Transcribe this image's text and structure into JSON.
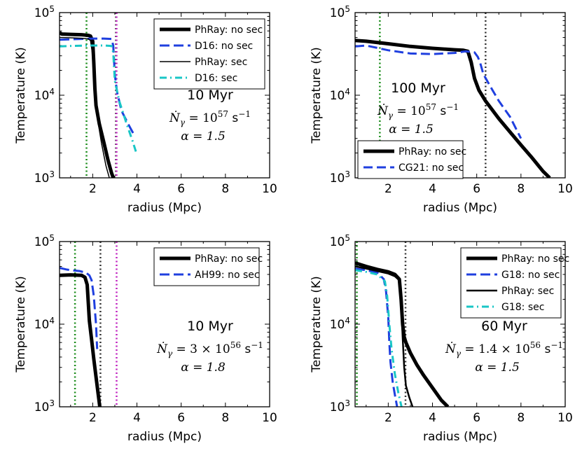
{
  "chart_data": [
    {
      "type": "line",
      "panel": "top-left",
      "xlabel": "radius (Mpc)",
      "ylabel": "Temperature (K)",
      "xlim": [
        0.5,
        10
      ],
      "ylim": [
        1000,
        100000
      ],
      "xscale": "linear",
      "yscale": "log",
      "xticks": [
        2,
        4,
        6,
        8,
        10
      ],
      "yticks": [
        {
          "base": "10",
          "exp": "3",
          "value": 1000
        },
        {
          "base": "10",
          "exp": "4",
          "value": 10000
        },
        {
          "base": "10",
          "exp": "5",
          "value": 100000
        }
      ],
      "legend_position": "top-right",
      "annotations": [
        "10 Myr",
        "Ṅγ = 10^57 s^-1",
        "α = 1.5"
      ],
      "anno_lines": [
        {
          "text": "10 Myr",
          "kind": "plain"
        },
        {
          "kind": "rate",
          "lhs": "Ṅ",
          "sub": "γ",
          "eq": " = ",
          "coef": "",
          "base": "10",
          "exp": "57",
          "unit": " s",
          "unit_exp": "−1"
        },
        {
          "text": "α = 1.5",
          "kind": "math"
        }
      ],
      "vlines": [
        {
          "x": 1.72,
          "color": "#1a8c1a"
        },
        {
          "x": 3.05,
          "color": "#333333"
        },
        {
          "x": 3.08,
          "color": "#c020c0"
        }
      ],
      "series": [
        {
          "name": "PhRay: no sec",
          "style": "solid",
          "width": 5,
          "color": "#000000",
          "x": [
            0.5,
            0.6,
            1.0,
            1.5,
            1.8,
            1.9,
            2.0,
            2.05,
            2.1,
            2.15,
            2.3,
            2.5,
            2.7,
            2.85,
            2.93
          ],
          "y": [
            57000,
            55000,
            54500,
            54000,
            53000,
            52000,
            45000,
            25000,
            12000,
            7500,
            4500,
            2700,
            1600,
            1150,
            1000
          ]
        },
        {
          "name": "D16: no sec",
          "style": "dashed",
          "width": 3,
          "color": "#1f3fdf",
          "x": [
            0.5,
            1.0,
            1.5,
            2.0,
            2.5,
            2.85,
            2.93,
            3.0,
            3.1,
            3.3,
            3.6,
            3.9
          ],
          "y": [
            47000,
            47500,
            48000,
            48500,
            48500,
            48000,
            40000,
            18000,
            11000,
            6500,
            4500,
            3200
          ]
        },
        {
          "name": "PhRay: sec",
          "style": "solid",
          "width": 1.5,
          "color": "#000000",
          "x": [
            0.5,
            1.0,
            1.5,
            1.8,
            1.9,
            2.0,
            2.1,
            2.2,
            2.4,
            2.6,
            2.75
          ],
          "y": [
            50000,
            49500,
            49000,
            48000,
            46000,
            30000,
            12000,
            5500,
            2600,
            1400,
            1000
          ]
        },
        {
          "name": "D16: sec",
          "style": "dashdot",
          "width": 3,
          "color": "#19c6c6",
          "x": [
            0.5,
            1.0,
            1.5,
            2.0,
            2.5,
            2.85,
            2.93,
            3.0,
            3.2,
            3.5,
            3.8,
            4.0
          ],
          "y": [
            39000,
            39500,
            39800,
            40000,
            40000,
            39500,
            33000,
            15000,
            8500,
            4800,
            2800,
            1900
          ]
        }
      ]
    },
    {
      "type": "line",
      "panel": "top-right",
      "xlabel": "radius (Mpc)",
      "ylabel": "Temperature (K)",
      "xlim": [
        0.5,
        10
      ],
      "ylim": [
        1000,
        100000
      ],
      "xscale": "linear",
      "yscale": "log",
      "xticks": [
        2,
        4,
        6,
        8,
        10
      ],
      "yticks": [
        {
          "base": "10",
          "exp": "3",
          "value": 1000
        },
        {
          "base": "10",
          "exp": "4",
          "value": 10000
        },
        {
          "base": "10",
          "exp": "5",
          "value": 100000
        }
      ],
      "legend_position": "bottom-left",
      "annotations": [
        "100 Myr",
        "Ṅγ = 10^57 s^-1",
        "α = 1.5"
      ],
      "anno_lines": [
        {
          "text": "100 Myr",
          "kind": "plain"
        },
        {
          "kind": "rate",
          "lhs": "Ṅ",
          "sub": "γ",
          "eq": " = ",
          "coef": "",
          "base": "10",
          "exp": "57",
          "unit": " s",
          "unit_exp": "−1"
        },
        {
          "text": "α = 1.5",
          "kind": "math"
        }
      ],
      "vlines": [
        {
          "x": 1.62,
          "color": "#1a8c1a"
        },
        {
          "x": 6.4,
          "color": "#333333"
        }
      ],
      "series": [
        {
          "name": "PhRay: no sec",
          "style": "solid",
          "width": 5,
          "color": "#000000",
          "x": [
            0.5,
            1.0,
            2.0,
            3.0,
            4.0,
            5.0,
            5.4,
            5.6,
            5.75,
            5.9,
            6.1,
            6.4,
            7.0,
            7.5,
            8.0,
            8.5,
            9.0,
            9.3
          ],
          "y": [
            46000,
            45000,
            42000,
            39000,
            37000,
            35500,
            35000,
            34000,
            25000,
            16000,
            11500,
            8500,
            5200,
            3600,
            2500,
            1750,
            1200,
            1000
          ]
        },
        {
          "name": "CG21: no sec",
          "style": "dashdash",
          "width": 3,
          "color": "#1f3fdf",
          "x": [
            0.5,
            1.0,
            2.0,
            3.0,
            4.0,
            5.0,
            5.5,
            5.9,
            6.05,
            6.15,
            6.3,
            6.6,
            7.0,
            7.5,
            8.0
          ],
          "y": [
            39000,
            40000,
            35000,
            32000,
            31500,
            32500,
            34000,
            33000,
            29000,
            25000,
            18000,
            13000,
            8500,
            5500,
            3000
          ]
        }
      ]
    },
    {
      "type": "line",
      "panel": "bottom-left",
      "xlabel": "radius (Mpc)",
      "ylabel": "Temperature (K)",
      "xlim": [
        0.5,
        10
      ],
      "ylim": [
        1000,
        100000
      ],
      "xscale": "linear",
      "yscale": "log",
      "xticks": [
        2,
        4,
        6,
        8,
        10
      ],
      "yticks": [
        {
          "base": "10",
          "exp": "3",
          "value": 1000
        },
        {
          "base": "10",
          "exp": "4",
          "value": 10000
        },
        {
          "base": "10",
          "exp": "5",
          "value": 100000
        }
      ],
      "legend_position": "top-right",
      "annotations": [
        "10 Myr",
        "Ṅγ = 3×10^56 s^-1",
        "α = 1.8"
      ],
      "anno_lines": [
        {
          "text": "10 Myr",
          "kind": "plain"
        },
        {
          "kind": "rate",
          "lhs": "Ṅ",
          "sub": "γ",
          "eq": " = ",
          "coef": "3 × ",
          "base": "10",
          "exp": "56",
          "unit": " s",
          "unit_exp": "−1"
        },
        {
          "text": "α = 1.8",
          "kind": "math"
        }
      ],
      "vlines": [
        {
          "x": 1.2,
          "color": "#1a8c1a"
        },
        {
          "x": 2.35,
          "color": "#333333"
        },
        {
          "x": 3.08,
          "color": "#c020c0"
        }
      ],
      "series": [
        {
          "name": "PhRay: no sec",
          "style": "solid",
          "width": 5,
          "color": "#000000",
          "x": [
            0.5,
            1.0,
            1.5,
            1.65,
            1.75,
            1.8,
            1.85,
            1.95,
            2.05,
            2.15,
            2.25,
            2.32
          ],
          "y": [
            39000,
            39500,
            39000,
            37000,
            30000,
            18000,
            11000,
            6500,
            3800,
            2300,
            1400,
            1000
          ]
        },
        {
          "name": "AH99: no sec",
          "style": "dashed",
          "width": 3,
          "color": "#1f3fdf",
          "x": [
            0.5,
            0.8,
            1.0,
            1.4,
            1.7,
            1.85,
            1.95,
            2.05,
            2.15,
            2.2
          ],
          "y": [
            48000,
            46000,
            45000,
            44000,
            42000,
            39000,
            34000,
            22000,
            10000,
            5000
          ]
        }
      ]
    },
    {
      "type": "line",
      "panel": "bottom-right",
      "xlabel": "radius (Mpc)",
      "ylabel": "Temperature (K)",
      "xlim": [
        0.5,
        10
      ],
      "ylim": [
        1000,
        100000
      ],
      "xscale": "linear",
      "yscale": "log",
      "xticks": [
        2,
        4,
        6,
        8,
        10
      ],
      "yticks": [
        {
          "base": "10",
          "exp": "3",
          "value": 1000
        },
        {
          "base": "10",
          "exp": "4",
          "value": 10000
        },
        {
          "base": "10",
          "exp": "5",
          "value": 100000
        }
      ],
      "legend_position": "top-right",
      "annotations": [
        "60 Myr",
        "Ṅγ = 1.4×10^56 s^-1",
        "α = 1.5"
      ],
      "anno_lines": [
        {
          "text": "60 Myr",
          "kind": "plain"
        },
        {
          "kind": "rate",
          "lhs": "Ṅ",
          "sub": "γ",
          "eq": " = ",
          "coef": "1.4 × ",
          "base": "10",
          "exp": "56",
          "unit": " s",
          "unit_exp": "−1"
        },
        {
          "text": "α = 1.5",
          "kind": "math"
        }
      ],
      "vlines": [
        {
          "x": 0.58,
          "color": "#1a8c1a"
        },
        {
          "x": 2.78,
          "color": "#333333"
        }
      ],
      "series": [
        {
          "name": "PhRay: no sec",
          "style": "solid",
          "width": 5,
          "color": "#000000",
          "x": [
            0.5,
            0.7,
            1.0,
            1.5,
            2.0,
            2.3,
            2.5,
            2.58,
            2.65,
            2.72,
            2.8,
            3.0,
            3.3,
            3.6,
            4.0,
            4.4,
            4.7
          ],
          "y": [
            55000,
            53000,
            50000,
            46000,
            43000,
            40000,
            35000,
            20000,
            10000,
            7000,
            6000,
            4500,
            3200,
            2400,
            1700,
            1200,
            1000
          ]
        },
        {
          "name": "G18: no sec",
          "style": "dashed",
          "width": 3,
          "color": "#1f3fdf",
          "x": [
            0.5,
            1.0,
            1.5,
            1.8,
            1.9,
            2.0,
            2.05,
            2.1,
            2.2,
            2.3,
            2.4
          ],
          "y": [
            47000,
            45000,
            42000,
            35000,
            25000,
            12000,
            6000,
            3500,
            2000,
            1400,
            1000
          ]
        },
        {
          "name": "PhRay: sec",
          "style": "solid",
          "width": 2.5,
          "color": "#000000",
          "x": [
            0.5,
            0.7,
            1.0,
            1.5,
            2.0,
            2.3,
            2.5,
            2.58,
            2.65,
            2.72,
            2.8,
            2.95,
            3.1
          ],
          "y": [
            50000,
            49000,
            47000,
            44000,
            41000,
            38000,
            34000,
            18000,
            7000,
            3000,
            1800,
            1300,
            1000
          ]
        },
        {
          "name": "G18: sec",
          "style": "dashdot",
          "width": 3,
          "color": "#19c6c6",
          "x": [
            0.5,
            1.0,
            1.5,
            1.85,
            1.95,
            2.05,
            2.15,
            2.3,
            2.45,
            2.6
          ],
          "y": [
            45000,
            43000,
            40000,
            33000,
            22000,
            10000,
            5000,
            2500,
            1500,
            1000
          ]
        }
      ]
    }
  ]
}
